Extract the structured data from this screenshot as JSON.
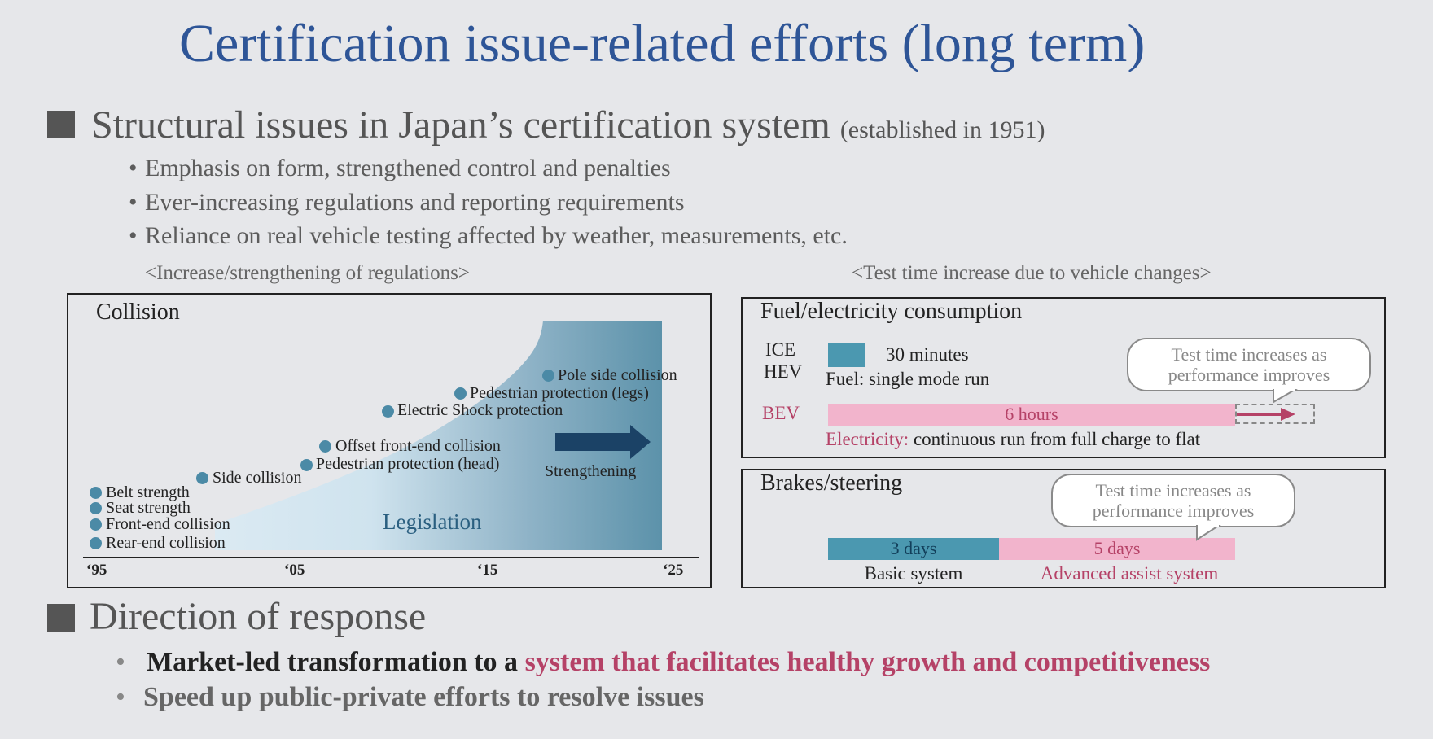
{
  "title": "Certification issue-related efforts (long term)",
  "section1": {
    "heading": "Structural issues in Japan’s certification system",
    "heading_note": "(established in 1951)",
    "bullets": [
      "Emphasis on form, strengthened control and penalties",
      "Ever-increasing regulations and reporting requirements",
      "Reliance on real vehicle testing affected by weather, measurements, etc."
    ]
  },
  "left_caption": "<Increase/strengthening of regulations>",
  "right_caption": "<Test time increase due to vehicle changes>",
  "collision": {
    "title": "Collision",
    "area_label": "Legislation",
    "trend_label": "Strengthening",
    "x_ticks": [
      "‘95",
      "‘05",
      "‘15",
      "‘25"
    ],
    "points": [
      {
        "label": "Belt strength"
      },
      {
        "label": "Seat strength"
      },
      {
        "label": "Front-end collision"
      },
      {
        "label": "Rear-end collision"
      },
      {
        "label": "Side collision"
      },
      {
        "label": "Pedestrian protection (head)"
      },
      {
        "label": "Offset front-end collision"
      },
      {
        "label": "Electric Shock protection"
      },
      {
        "label": "Pedestrian protection (legs)"
      },
      {
        "label": "Pole side collision"
      }
    ]
  },
  "fuel": {
    "title": "Fuel/electricity consumption",
    "ice": "ICE",
    "hev": "HEV",
    "ice_time": "30 minutes",
    "ice_desc": "Fuel: single mode run",
    "bev": "BEV",
    "bev_time": "6 hours",
    "bev_desc_prefix": "Electricity:",
    "bev_desc": "continuous run from full charge to flat",
    "callout_line1": "Test time increases as",
    "callout_line2": "performance improves"
  },
  "brakes": {
    "title": "Brakes/steering",
    "basic_time": "3 days",
    "advanced_time": "5 days",
    "basic_label": "Basic system",
    "advanced_label": "Advanced assist system",
    "callout_line1": "Test time increases as",
    "callout_line2": "performance improves"
  },
  "section2": {
    "heading": "Direction of response",
    "bullet1_prefix": "Market-led transformation to a",
    "bullet1_highlight": "system that facilitates healthy growth and competitiveness",
    "bullet2": "Speed up public-private efforts to resolve issues"
  },
  "colors": {
    "title_blue": "#2e5597",
    "teal": "#4b8aa6",
    "pink_bar": "#f2b4cc",
    "pink_text": "#b54267",
    "arrow_navy": "#1b4266"
  }
}
